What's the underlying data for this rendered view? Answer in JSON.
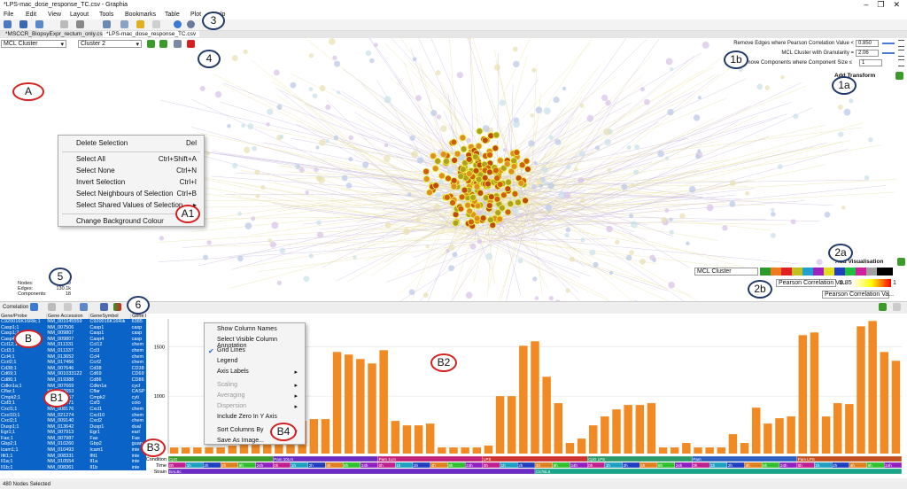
{
  "window": {
    "title": "*LPS-mac_dose_response_TC.csv - Graphia"
  },
  "menu": [
    "File",
    "Edit",
    "View",
    "Layout",
    "Tools",
    "Bookmarks",
    "Table",
    "Plot",
    "Help"
  ],
  "tabs": [
    "*MSCCR_BiopsyExpr_rectum_only.csv",
    "*LPS-mac_dose_response_TC.csv"
  ],
  "selectors": {
    "attribute": "MCL Cluster",
    "value": "Cluster 2"
  },
  "transforms": [
    {
      "label": "Remove Edges where Pearson Correlation Value <",
      "value": "0.850"
    },
    {
      "label": "MCL Cluster with Granularity =",
      "value": "2.06"
    },
    {
      "label": "Remove Components where Component Size ≤",
      "value": "1"
    }
  ],
  "add_transform": "Add Transform",
  "graph_menu": [
    {
      "label": "Delete Selection",
      "shortcut": "Del"
    },
    {
      "label": "Select All",
      "shortcut": "Ctrl+Shift+A"
    },
    {
      "label": "Select None",
      "shortcut": "Ctrl+N"
    },
    {
      "label": "Invert Selection",
      "shortcut": "Ctrl+I"
    },
    {
      "label": "Select Neighbours of Selection",
      "shortcut": "Ctrl+B"
    },
    {
      "label": "Select Shared Values of Selection",
      "shortcut": "▸"
    },
    {
      "label": "Change Background Colour",
      "shortcut": ""
    }
  ],
  "stats": [
    {
      "label": "Nodes:",
      "value": "3319"
    },
    {
      "label": "Edges:",
      "value": "130.1k"
    },
    {
      "label": "Components:",
      "value": "18"
    }
  ],
  "visualisation": {
    "add": "Add Visualisation",
    "colour_attribute": "MCL Cluster",
    "size_attribute": "Pearson Correlation Va...",
    "min": "0.85",
    "max": "1",
    "text_attribute": "Pearson Correlation Va..."
  },
  "plot_toolbar": {
    "label": "Correlation"
  },
  "table": {
    "headers": [
      "Gene/Probe",
      "Gene Accession",
      "GeneSymbol",
      "Gene I"
    ],
    "rows": [
      [
        "C920016K16Rik;1",
        "NM_001045559",
        "C920016K16Rik",
        "6385"
      ],
      [
        "Casp1;1",
        "NM_007506",
        "Casp1",
        "casp"
      ],
      [
        "Casp1;2",
        "NM_009807",
        "Casp1",
        "casp"
      ],
      [
        "Casp4;1",
        "NM_009807",
        "Casp4",
        "casp"
      ],
      [
        "Ccl12;1",
        "NM_011331",
        "Ccl12",
        "chem"
      ],
      [
        "Ccl3;1",
        "NM_011337",
        "Ccl3",
        "chem"
      ],
      [
        "Ccl4;1",
        "NM_013652",
        "Ccl4",
        "chem"
      ],
      [
        "Ccrl2;1",
        "NM_017466",
        "Ccrl2",
        "chem"
      ],
      [
        "Cd38;1",
        "NM_007646",
        "Cd38",
        "CD38"
      ],
      [
        "Cd69;1",
        "NM_001033122",
        "Cd69",
        "CD69"
      ],
      [
        "Cd86;1",
        "NM_019388",
        "Cd86",
        "CD86"
      ],
      [
        "Cdkn1a;1",
        "NM_007669",
        "Cdkn1a",
        "cycl"
      ],
      [
        "Cflar;1",
        "NM_207653",
        "Cflar",
        "CASP"
      ],
      [
        "Cmpk2;1",
        "NM_020557",
        "Cmpk2",
        "cyti"
      ],
      [
        "Csf3;1",
        "NM_009971",
        "Csf3",
        "colo"
      ],
      [
        "Cxcl1;1",
        "NM_008176",
        "Cxcl1",
        "chem"
      ],
      [
        "Cxcl10;1",
        "NM_021274",
        "Cxcl10",
        "chem"
      ],
      [
        "Cxcl2;1",
        "NM_009140",
        "Cxcl2",
        "chem"
      ],
      [
        "Dusp1;1",
        "NM_013642",
        "Dusp1",
        "dual"
      ],
      [
        "Egr1;1",
        "NM_007913",
        "Egr1",
        "earl"
      ],
      [
        "Fas;1",
        "NM_007987",
        "Fas",
        "Fas"
      ],
      [
        "Gbp2;1",
        "NM_010260",
        "Gbp2",
        "guan"
      ],
      [
        "Icam1;1",
        "NM_010493",
        "Icam1",
        "inte"
      ],
      [
        "Ifit1;1",
        "NM_008331",
        "Ifit1",
        "inte"
      ],
      [
        "Il1a;1",
        "NM_010554",
        "Il1a",
        "inte"
      ],
      [
        "Il1b;1",
        "NM_008361",
        "Il1b",
        "inte"
      ]
    ]
  },
  "plot_menu": [
    {
      "label": "Show Column Names",
      "arrow": false
    },
    {
      "label": "Select Visible Column Annotation",
      "arrow": false
    },
    {
      "label": "Grid Lines",
      "arrow": false
    },
    {
      "label": "Legend",
      "arrow": false
    },
    {
      "label": "Axis Labels",
      "arrow": true
    },
    {
      "label": "Scaling",
      "arrow": true
    },
    {
      "label": "Averaging",
      "arrow": true
    },
    {
      "label": "Dispersion",
      "arrow": true
    },
    {
      "label": "Include Zero In Y Axis",
      "arrow": false
    },
    {
      "label": "Sort Columns By",
      "arrow": true
    },
    {
      "label": "Save As Image...",
      "arrow": false
    }
  ],
  "chart_data": {
    "type": "bar",
    "color": "#f28a24",
    "grid": true,
    "ylim": [
      420,
      1780
    ],
    "yticks": [
      500,
      1000,
      1500
    ],
    "values": [
      482,
      482,
      482,
      482,
      482,
      500,
      545,
      545,
      562,
      661,
      661,
      750,
      768,
      768,
      1446,
      1420,
      1375,
      1330,
      1464,
      750,
      705,
      705,
      723,
      482,
      482,
      482,
      482,
      500,
      1000,
      1000,
      1509,
      1554,
      1196,
      929,
      527,
      571,
      705,
      795,
      866,
      911,
      911,
      929,
      482,
      482,
      527,
      482,
      482,
      482,
      616,
      527,
      884,
      723,
      777,
      795,
      1616,
      1643,
      795,
      929,
      920,
      1705,
      1759,
      1446,
      1357
    ]
  },
  "annotations": {
    "row_labels": [
      "Condition",
      "Time",
      "Strain"
    ],
    "condition": [
      {
        "label": "CpG",
        "color": "#3a9a2a"
      },
      {
        "label": "Pam 10Lm",
        "color": "#6a2bc2"
      },
      {
        "label": "Pam 1Lm",
        "color": "#c2207a"
      },
      {
        "label": "LPS",
        "color": "#d03030"
      },
      {
        "label": "CpG LPS",
        "color": "#2a9a6a"
      },
      {
        "label": "Pam",
        "color": "#2b5fc2"
      },
      {
        "label": "Pam LPS",
        "color": "#c24f20"
      }
    ],
    "time": [
      "0h",
      "1h",
      "2h",
      "4h",
      "8h",
      "24h",
      "0h",
      "1h",
      "2h",
      "4h",
      "8h",
      "24h",
      "0h",
      "1h",
      "2h",
      "4h",
      "8h",
      "24h",
      "0h",
      "1h",
      "2h",
      "4h",
      "8h",
      "24h",
      "0h",
      "1h",
      "2h",
      "4h",
      "8h",
      "24h",
      "0h",
      "1h",
      "2h",
      "4h",
      "8h",
      "24h",
      "0h",
      "1h",
      "2h",
      "4h",
      "8h",
      "24h"
    ],
    "strain": [
      {
        "label": "BALBc",
        "color": "#6a2bc2"
      },
      {
        "label": "C57BL6",
        "color": "#1aa58a"
      }
    ]
  },
  "status": "480 Nodes Selected",
  "callouts": [
    "A",
    "A1",
    "1a",
    "1b",
    "2a",
    "2b",
    "3",
    "4",
    "5",
    "6",
    "B",
    "B1",
    "B2",
    "B3",
    "B4"
  ]
}
